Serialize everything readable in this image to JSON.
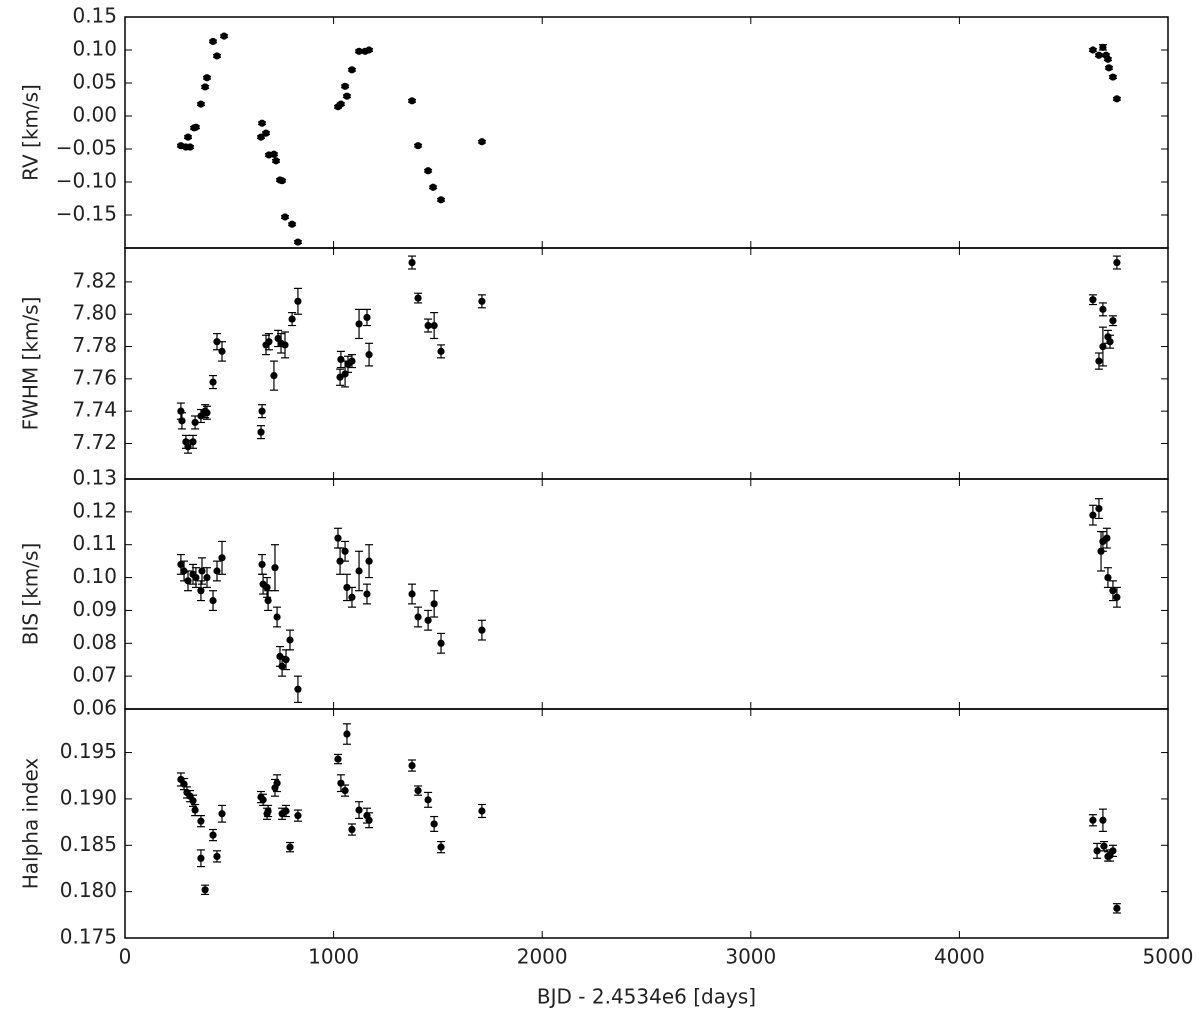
{
  "chart_data": [
    {
      "type": "scatter",
      "ylabel": "RV [km/s]",
      "color": "#000000",
      "xlim": [
        0,
        5000
      ],
      "ylim": [
        -0.2,
        0.15
      ],
      "yticks": [
        {
          "value": -0.15,
          "label": "−0.15"
        },
        {
          "value": -0.1,
          "label": "−0.10"
        },
        {
          "value": -0.05,
          "label": "−0.05"
        },
        {
          "value": 0,
          "label": "0.00"
        },
        0.05,
        {
          "value": 0.1,
          "label": "0.10"
        },
        0.15
      ],
      "x": [
        268,
        292,
        312,
        302,
        331,
        340,
        364,
        384,
        393,
        422,
        441,
        475,
        657,
        652,
        676,
        690,
        714,
        724,
        743,
        753,
        767,
        801,
        829,
        1021,
        1035,
        1055,
        1064,
        1088,
        1122,
        1151,
        1170,
        1376,
        1405,
        1453,
        1477,
        1515,
        1711,
        4640,
        4669,
        4688,
        4703,
        4712,
        4717,
        4736,
        4755
      ],
      "values": [
        -0.045,
        -0.047,
        -0.047,
        -0.032,
        -0.018,
        -0.017,
        0.018,
        0.044,
        0.058,
        0.113,
        0.091,
        0.121,
        -0.011,
        -0.032,
        -0.026,
        -0.059,
        -0.058,
        -0.068,
        -0.097,
        -0.098,
        -0.153,
        -0.164,
        -0.191,
        0.014,
        0.018,
        0.045,
        0.03,
        0.07,
        0.098,
        0.098,
        0.1,
        0.023,
        -0.045,
        -0.083,
        -0.108,
        -0.127,
        -0.039,
        0.1,
        0.092,
        0.104,
        0.092,
        0.086,
        0.073,
        0.059,
        0.026
      ],
      "errors": [
        0.002,
        0.002,
        0.002,
        0.002,
        0.002,
        0.002,
        0.002,
        0.002,
        0.002,
        0.002,
        0.002,
        0.002,
        0.002,
        0.002,
        0.002,
        0.002,
        0.002,
        0.002,
        0.002,
        0.002,
        0.002,
        0.002,
        0.002,
        0.002,
        0.002,
        0.002,
        0.002,
        0.002,
        0.002,
        0.002,
        0.002,
        0.002,
        0.002,
        0.002,
        0.002,
        0.002,
        0.002,
        0.002,
        0.002,
        0.004,
        0.002,
        0.002,
        0.002,
        0.002,
        0.002
      ]
    },
    {
      "type": "scatter",
      "ylabel": "FWHM [km/s]",
      "color": "#000000",
      "xlim": [
        0,
        5000
      ],
      "ylim": [
        7.698,
        7.841
      ],
      "yticks": [
        7.72,
        7.74,
        7.76,
        {
          "value": 7.78,
          "label": "7.78"
        },
        {
          "value": 7.8,
          "label": "7.80"
        },
        7.82
      ],
      "x": [
        268,
        273,
        292,
        302,
        326,
        336,
        364,
        384,
        393,
        422,
        441,
        465,
        652,
        657,
        676,
        690,
        714,
        734,
        748,
        767,
        801,
        829,
        1031,
        1035,
        1055,
        1069,
        1088,
        1122,
        1160,
        1170,
        1376,
        1405,
        1453,
        1482,
        1515,
        1711,
        4640,
        4669,
        4688,
        4688,
        4712,
        4722,
        4736,
        4755
      ],
      "values": [
        7.74,
        7.734,
        7.721,
        7.718,
        7.721,
        7.733,
        7.737,
        7.74,
        7.739,
        7.758,
        7.783,
        7.777,
        7.727,
        7.74,
        7.781,
        7.783,
        7.762,
        7.785,
        7.782,
        7.781,
        7.797,
        7.808,
        7.761,
        7.772,
        7.763,
        7.769,
        7.771,
        7.794,
        7.798,
        7.775,
        7.832,
        7.81,
        7.793,
        7.793,
        7.777,
        7.808,
        7.809,
        7.771,
        7.803,
        7.78,
        7.786,
        7.783,
        7.796,
        7.832
      ],
      "errors": [
        0.005,
        0.005,
        0.004,
        0.004,
        0.004,
        0.004,
        0.004,
        0.004,
        0.004,
        0.004,
        0.005,
        0.006,
        0.004,
        0.004,
        0.006,
        0.005,
        0.009,
        0.005,
        0.006,
        0.008,
        0.004,
        0.008,
        0.005,
        0.005,
        0.008,
        0.005,
        0.004,
        0.009,
        0.005,
        0.007,
        0.004,
        0.003,
        0.004,
        0.008,
        0.004,
        0.004,
        0.003,
        0.005,
        0.004,
        0.012,
        0.004,
        0.004,
        0.003,
        0.004
      ]
    },
    {
      "type": "scatter",
      "ylabel": "BIS [km/s]",
      "color": "#000000",
      "xlim": [
        0,
        5000
      ],
      "ylim": [
        0.06,
        0.13
      ],
      "yticks": [
        0.06,
        0.07,
        0.08,
        0.09,
        {
          "value": 0.1,
          "label": "0.10"
        },
        0.11,
        0.12,
        0.13
      ],
      "x": [
        268,
        283,
        302,
        326,
        340,
        364,
        369,
        393,
        422,
        441,
        465,
        657,
        662,
        681,
        686,
        719,
        729,
        743,
        753,
        772,
        791,
        829,
        1021,
        1031,
        1055,
        1064,
        1088,
        1122,
        1160,
        1170,
        1376,
        1405,
        1453,
        1482,
        1515,
        1711,
        4640,
        4669,
        4679,
        4688,
        4707,
        4712,
        4736,
        4755
      ],
      "values": [
        0.104,
        0.102,
        0.099,
        0.101,
        0.1,
        0.096,
        0.102,
        0.1,
        0.093,
        0.102,
        0.106,
        0.104,
        0.098,
        0.097,
        0.093,
        0.103,
        0.088,
        0.076,
        0.073,
        0.075,
        0.081,
        0.066,
        0.112,
        0.105,
        0.108,
        0.097,
        0.094,
        0.102,
        0.095,
        0.105,
        0.095,
        0.088,
        0.087,
        0.092,
        0.08,
        0.084,
        0.119,
        0.121,
        0.108,
        0.111,
        0.112,
        0.1,
        0.096,
        0.094
      ],
      "errors": [
        0.003,
        0.003,
        0.003,
        0.003,
        0.003,
        0.003,
        0.004,
        0.003,
        0.003,
        0.003,
        0.005,
        0.003,
        0.003,
        0.003,
        0.003,
        0.007,
        0.003,
        0.003,
        0.003,
        0.003,
        0.003,
        0.004,
        0.003,
        0.004,
        0.003,
        0.004,
        0.003,
        0.006,
        0.003,
        0.005,
        0.003,
        0.003,
        0.003,
        0.004,
        0.003,
        0.003,
        0.003,
        0.003,
        0.006,
        0.003,
        0.003,
        0.003,
        0.003,
        0.003
      ]
    },
    {
      "type": "scatter",
      "ylabel": "Halpha index",
      "xlabel": "BJD - 2.4534e6 [days]",
      "color": "#000000",
      "xlim": [
        0,
        5000
      ],
      "ylim": [
        0.175,
        0.1997
      ],
      "xticks": [
        0,
        1000,
        2000,
        3000,
        4000,
        5000
      ],
      "yticks": [
        0.175,
        {
          "value": 0.18,
          "label": "0.180"
        },
        0.185,
        {
          "value": 0.19,
          "label": "0.190"
        },
        0.195
      ],
      "x": [
        268,
        283,
        297,
        312,
        326,
        336,
        364,
        364,
        384,
        422,
        441,
        465,
        652,
        662,
        681,
        686,
        719,
        729,
        753,
        772,
        791,
        829,
        1021,
        1035,
        1055,
        1064,
        1088,
        1122,
        1160,
        1170,
        1376,
        1405,
        1453,
        1482,
        1515,
        1711,
        4640,
        4660,
        4688,
        4693,
        4712,
        4722,
        4736,
        4755
      ],
      "values": [
        0.1921,
        0.1916,
        0.1907,
        0.1903,
        0.1898,
        0.1888,
        0.1876,
        0.1836,
        0.1802,
        0.1861,
        0.1838,
        0.1884,
        0.1902,
        0.1899,
        0.1884,
        0.1887,
        0.1912,
        0.1917,
        0.1884,
        0.1887,
        0.1848,
        0.1882,
        0.1943,
        0.1917,
        0.1909,
        0.197,
        0.1867,
        0.1888,
        0.1882,
        0.1877,
        0.1936,
        0.1909,
        0.1899,
        0.1873,
        0.1848,
        0.1887,
        0.1877,
        0.1844,
        0.1877,
        0.1849,
        0.1838,
        0.1839,
        0.1844,
        0.1782
      ],
      "errors": [
        0.0007,
        0.0006,
        0.0006,
        0.0006,
        0.0006,
        0.0006,
        0.0006,
        0.0009,
        0.0005,
        0.0006,
        0.0006,
        0.0009,
        0.0006,
        0.0006,
        0.0006,
        0.0006,
        0.0009,
        0.0009,
        0.0006,
        0.0006,
        0.0005,
        0.0006,
        0.0005,
        0.0009,
        0.0006,
        0.0011,
        0.0006,
        0.0009,
        0.0008,
        0.0008,
        0.0006,
        0.0005,
        0.0008,
        0.0008,
        0.0006,
        0.0007,
        0.0006,
        0.0008,
        0.0012,
        0.0005,
        0.0005,
        0.0006,
        0.0006,
        0.0005
      ]
    }
  ]
}
